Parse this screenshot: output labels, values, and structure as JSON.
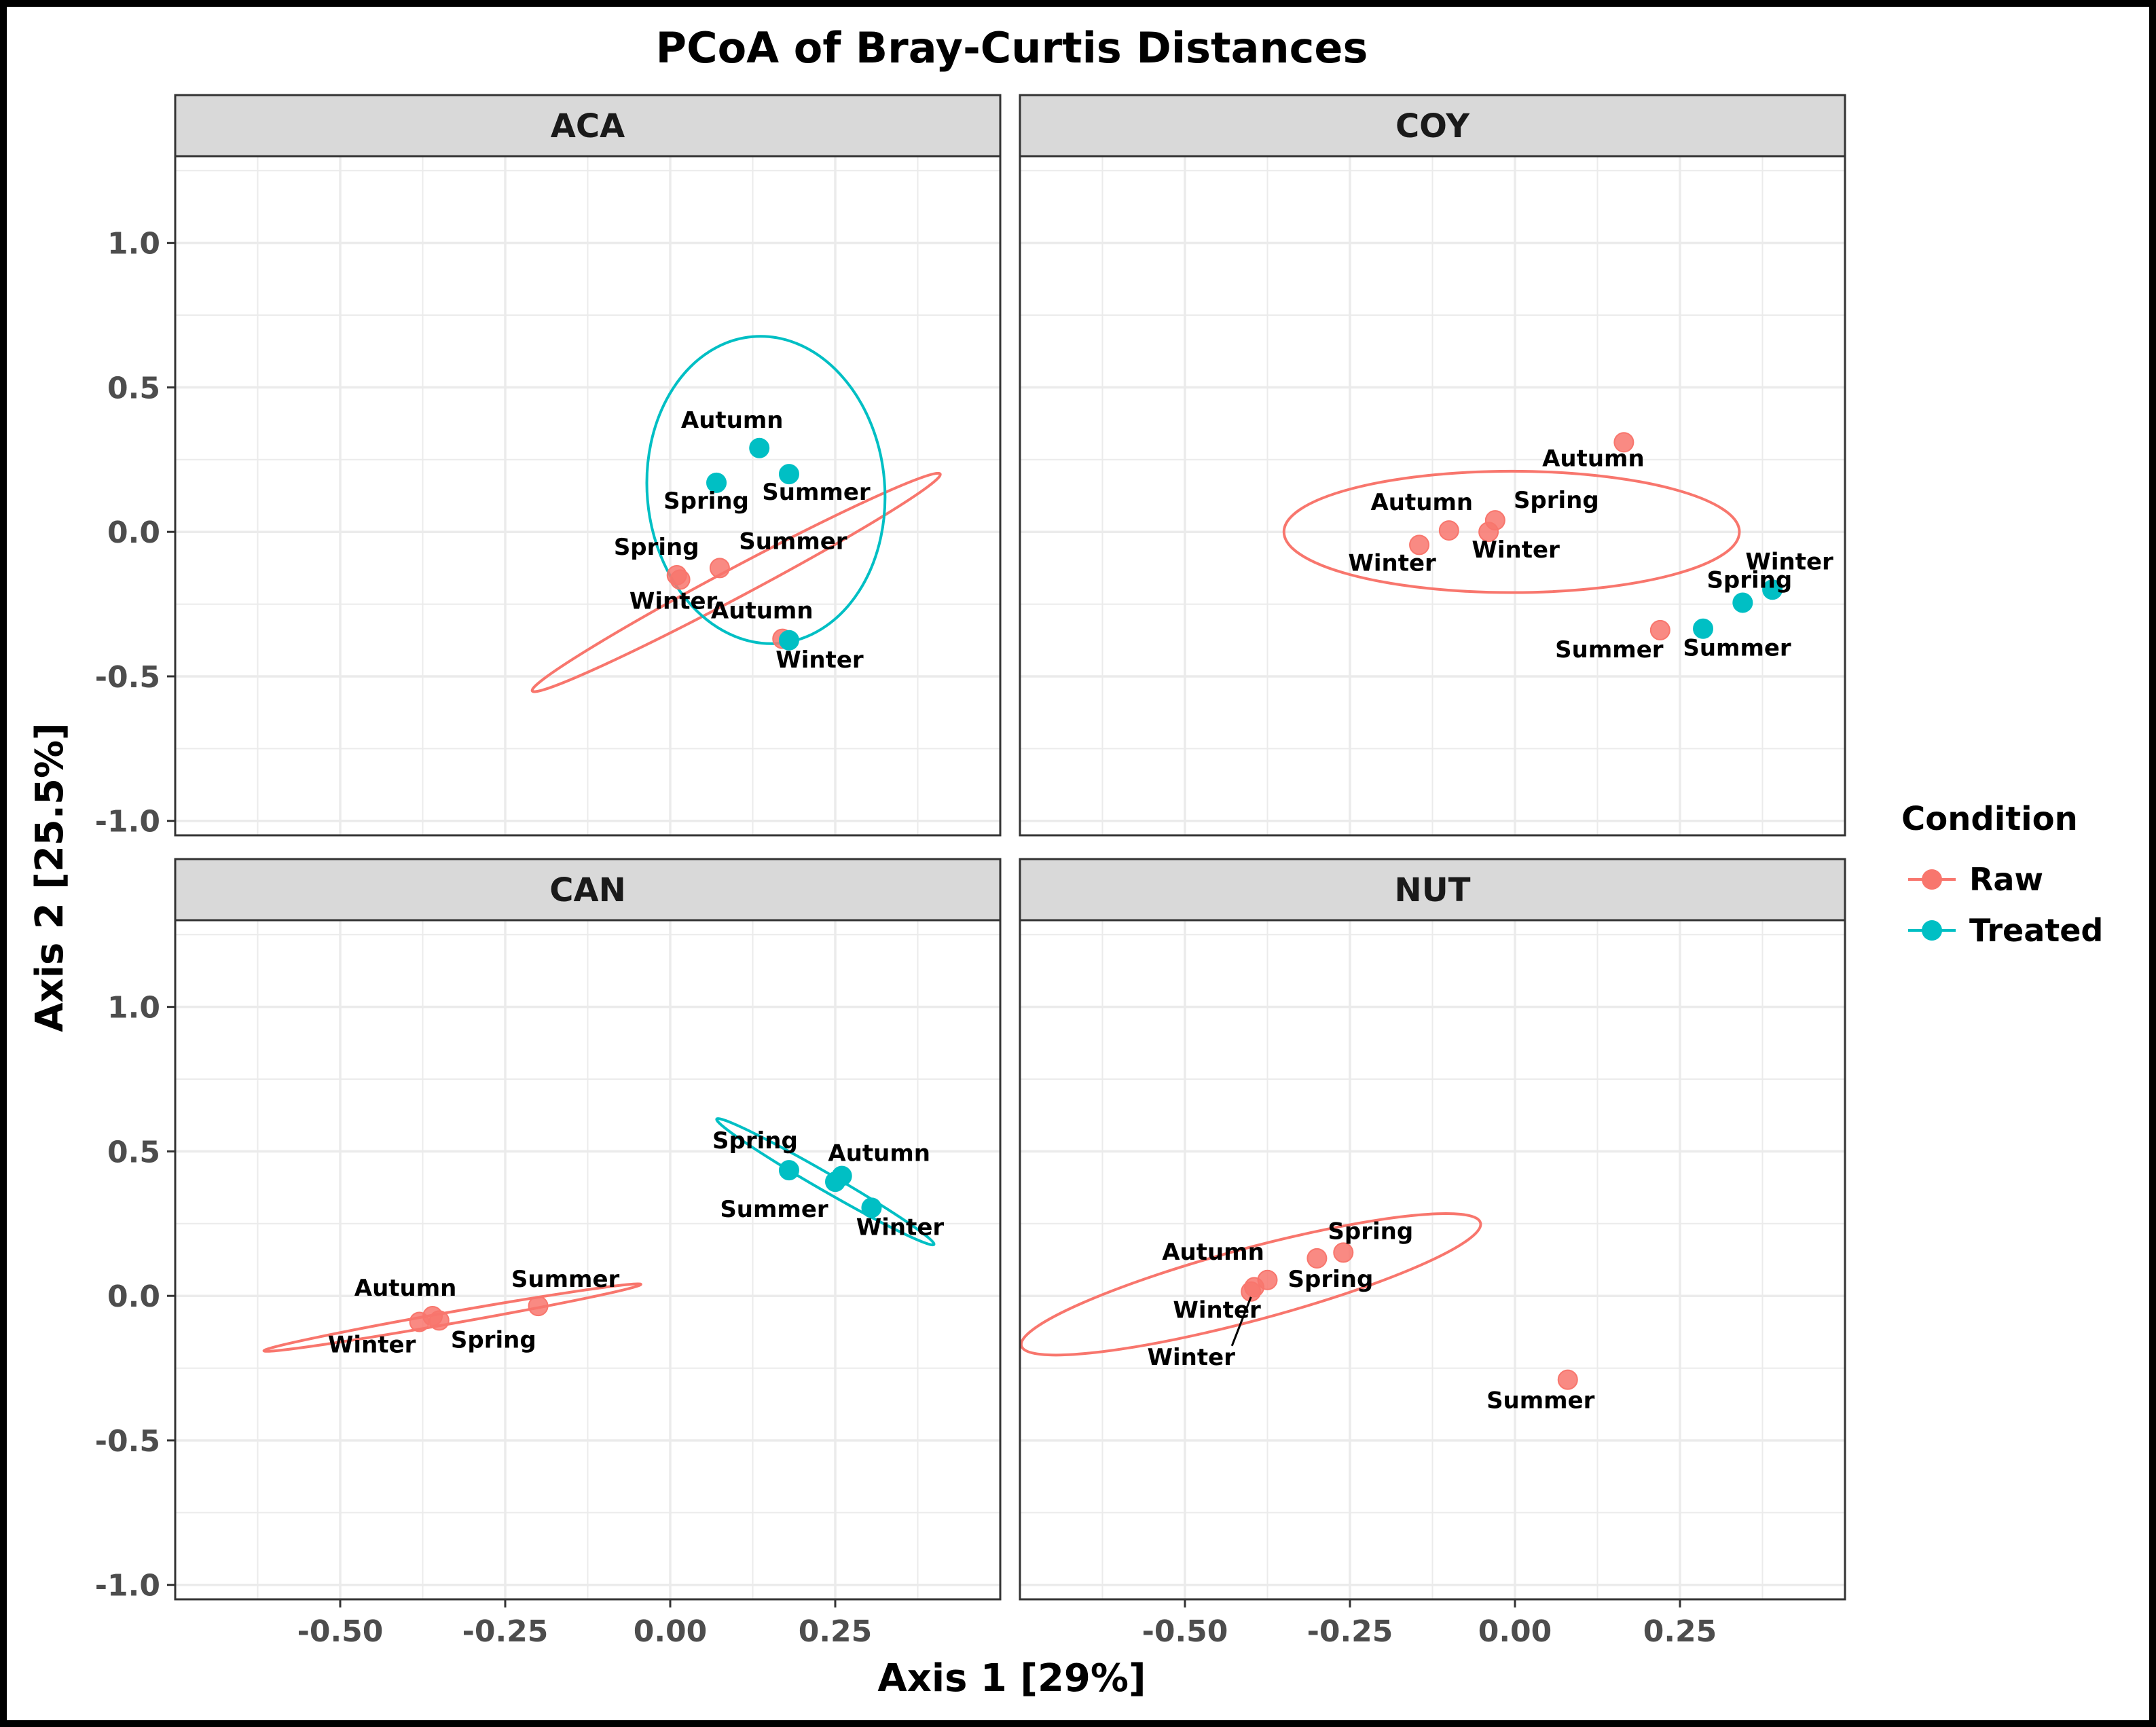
{
  "chart_data": {
    "type": "scatter",
    "title": "PCoA of Bray-Curtis Distances",
    "xlabel": "Axis 1 [29%]",
    "ylabel": "Axis 2 [25.5%]",
    "xlim": [
      -0.75,
      0.5
    ],
    "ylim": [
      -1.05,
      1.3
    ],
    "x_ticks": [
      -0.5,
      -0.25,
      0.0,
      0.25
    ],
    "x_tick_labels": [
      "-0.50",
      "-0.25",
      "0.00",
      "0.25"
    ],
    "y_ticks": [
      1.0,
      0.5,
      0.0,
      -0.5,
      -1.0
    ],
    "y_tick_labels": [
      "1.0",
      "0.5",
      "0.0",
      "-0.5",
      "-1.0"
    ],
    "grid": true,
    "legend": {
      "title": "Condition",
      "position": "right",
      "entries": [
        {
          "name": "Raw",
          "color": "#F8766D"
        },
        {
          "name": "Treated",
          "color": "#00BFC4"
        }
      ]
    },
    "panels": [
      {
        "name": "ACA",
        "points": [
          {
            "condition": "Treated",
            "label": "Autumn",
            "x": 0.135,
            "y": 0.29
          },
          {
            "condition": "Treated",
            "label": "Summer",
            "x": 0.18,
            "y": 0.2
          },
          {
            "condition": "Treated",
            "label": "Spring",
            "x": 0.07,
            "y": 0.17
          },
          {
            "condition": "Raw",
            "label": "Summer",
            "x": 0.075,
            "y": -0.125
          },
          {
            "condition": "Raw",
            "label": "Spring",
            "x": 0.01,
            "y": -0.15
          },
          {
            "condition": "Raw",
            "label": "Winter",
            "x": 0.015,
            "y": -0.165
          },
          {
            "condition": "Raw",
            "label": "Autumn",
            "x": 0.17,
            "y": -0.37
          },
          {
            "condition": "Treated",
            "label": "Winter",
            "x": 0.18,
            "y": -0.375
          }
        ],
        "ellipses": [
          {
            "condition": "Raw",
            "cx": 0.1,
            "cy": -0.175,
            "rx": 0.35,
            "ry": 0.1,
            "angle_deg": -28
          },
          {
            "condition": "Treated",
            "cx": 0.145,
            "cy": 0.145,
            "rx": 0.18,
            "ry": 1.065,
            "angle_deg": -5
          }
        ]
      },
      {
        "name": "COY",
        "points": [
          {
            "condition": "Raw",
            "label": "Autumn",
            "x": 0.165,
            "y": 0.31
          },
          {
            "condition": "Raw",
            "label": "Spring",
            "x": -0.03,
            "y": 0.04
          },
          {
            "condition": "Raw",
            "label": "Autumn",
            "x": -0.1,
            "y": 0.005
          },
          {
            "condition": "Raw",
            "label": "Winter",
            "x": -0.04,
            "y": 0.0
          },
          {
            "condition": "Raw",
            "label": "Winter",
            "x": -0.145,
            "y": -0.045
          },
          {
            "condition": "Treated",
            "label": "Winter",
            "x": 0.39,
            "y": -0.2
          },
          {
            "condition": "Treated",
            "label": "Spring",
            "x": 0.345,
            "y": -0.245
          },
          {
            "condition": "Treated",
            "label": "Summer",
            "x": 0.285,
            "y": -0.335
          },
          {
            "condition": "Raw",
            "label": "Summer",
            "x": 0.22,
            "y": -0.34
          }
        ],
        "ellipses": [
          {
            "condition": "Raw",
            "cx": -0.005,
            "cy": 0.0,
            "rx": 0.345,
            "ry": 0.42,
            "angle_deg": 0
          }
        ]
      },
      {
        "name": "CAN",
        "points": [
          {
            "condition": "Treated",
            "label": "Spring",
            "x": 0.18,
            "y": 0.435
          },
          {
            "condition": "Treated",
            "label": "Autumn",
            "x": 0.26,
            "y": 0.415
          },
          {
            "condition": "Treated",
            "label": "Summer",
            "x": 0.25,
            "y": 0.395
          },
          {
            "condition": "Treated",
            "label": "Winter",
            "x": 0.305,
            "y": 0.305
          },
          {
            "condition": "Raw",
            "label": "Summer",
            "x": -0.2,
            "y": -0.035
          },
          {
            "condition": "Raw",
            "label": "Autumn",
            "x": -0.36,
            "y": -0.07
          },
          {
            "condition": "Raw",
            "label": "Spring",
            "x": -0.35,
            "y": -0.085
          },
          {
            "condition": "Raw",
            "label": "Winter",
            "x": -0.38,
            "y": -0.09
          }
        ],
        "ellipses": [
          {
            "condition": "Raw",
            "cx": -0.33,
            "cy": -0.075,
            "rx": 0.29,
            "ry": 0.04,
            "angle_deg": -10
          },
          {
            "condition": "Treated",
            "cx": 0.235,
            "cy": 0.395,
            "rx": 0.19,
            "ry": 0.06,
            "angle_deg": 30
          }
        ]
      },
      {
        "name": "NUT",
        "points": [
          {
            "condition": "Raw",
            "label": "Spring",
            "x": -0.26,
            "y": 0.15
          },
          {
            "condition": "Raw",
            "label": "Spring",
            "x": -0.3,
            "y": 0.13
          },
          {
            "condition": "Raw",
            "label": "Autumn",
            "x": -0.375,
            "y": 0.055
          },
          {
            "condition": "Raw",
            "label": "Winter",
            "x": -0.395,
            "y": 0.03
          },
          {
            "condition": "Raw",
            "label": "Winter",
            "x": -0.4,
            "y": 0.015
          },
          {
            "condition": "Raw",
            "label": "Summer",
            "x": 0.08,
            "y": -0.29
          }
        ],
        "ellipses": [
          {
            "condition": "Raw",
            "cx": -0.4,
            "cy": 0.04,
            "rx": 0.36,
            "ry": 0.25,
            "angle_deg": -15
          }
        ]
      }
    ]
  }
}
